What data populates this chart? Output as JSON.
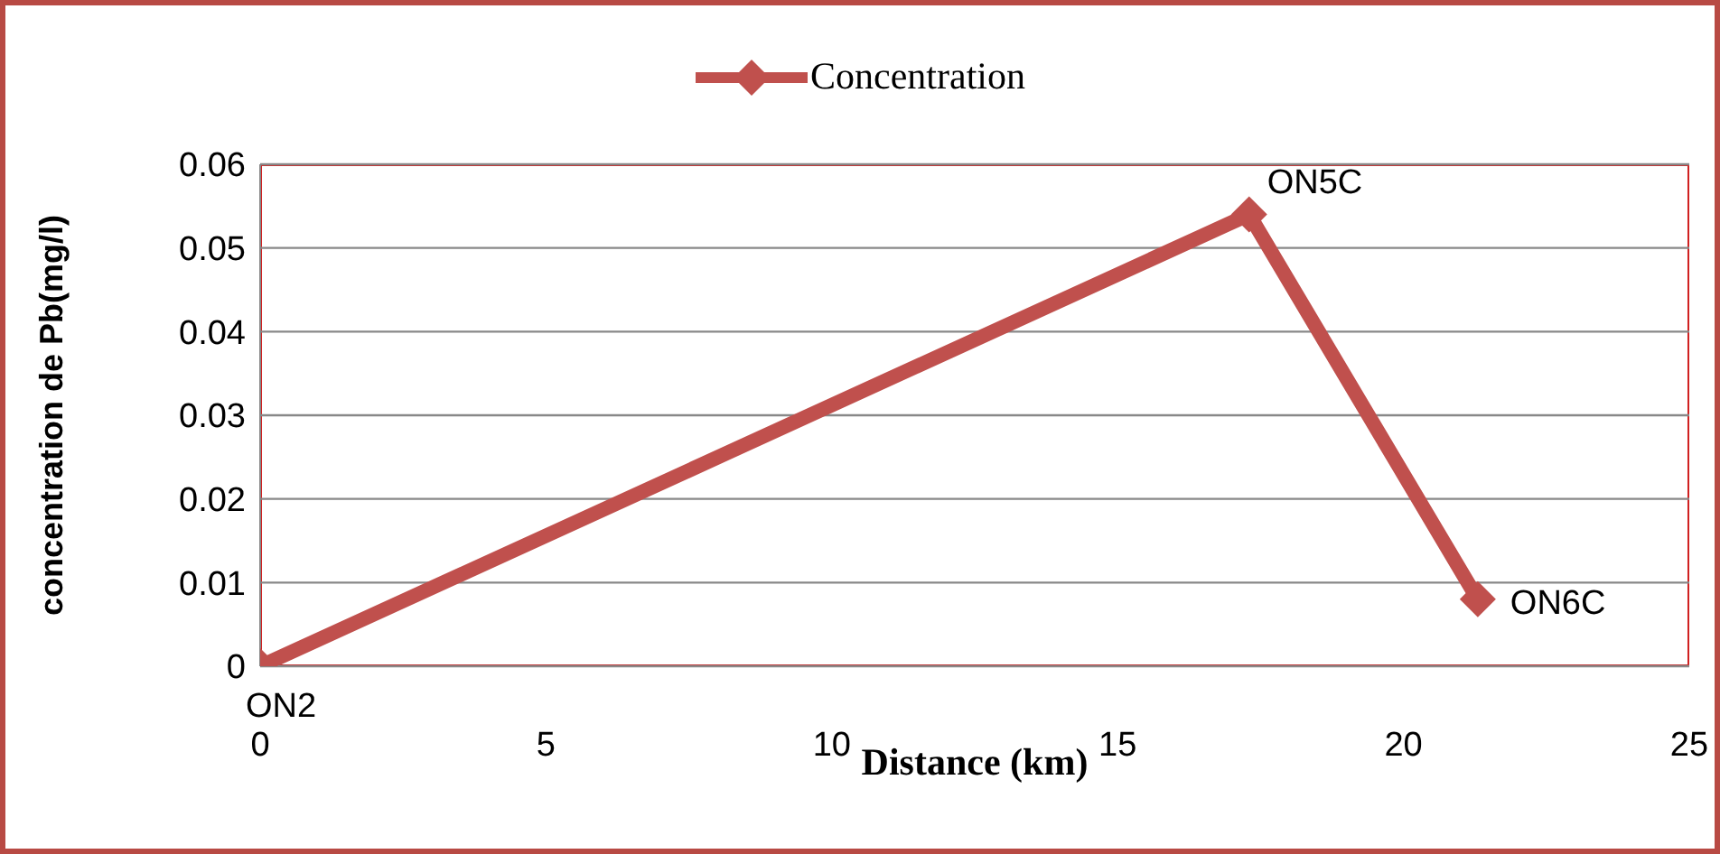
{
  "chart_data": {
    "type": "line",
    "xlabel": "Distance (km)",
    "ylabel": "concentration de Pb(mg/l)",
    "x": [
      0,
      17.3,
      21.3
    ],
    "series": [
      {
        "name": "Concentration",
        "color": "#c0504d",
        "values": [
          0,
          0.054,
          0.008
        ]
      }
    ],
    "xlim": [
      0,
      25
    ],
    "xticks": [
      0,
      5,
      10,
      15,
      20,
      25
    ],
    "ylim": [
      0,
      0.06
    ],
    "yticks": [
      0,
      0.01,
      0.02,
      0.03,
      0.04,
      0.05,
      0.06
    ],
    "grid": "y",
    "legend": "top",
    "marker": "diamond",
    "line_style": "solid",
    "annotations": [
      {
        "text": "ON2",
        "x": 0,
        "y": 0
      },
      {
        "text": "ON5C",
        "x": 17.3,
        "y": 0.054
      },
      {
        "text": "ON6C",
        "x": 21.3,
        "y": 0.008
      }
    ]
  }
}
